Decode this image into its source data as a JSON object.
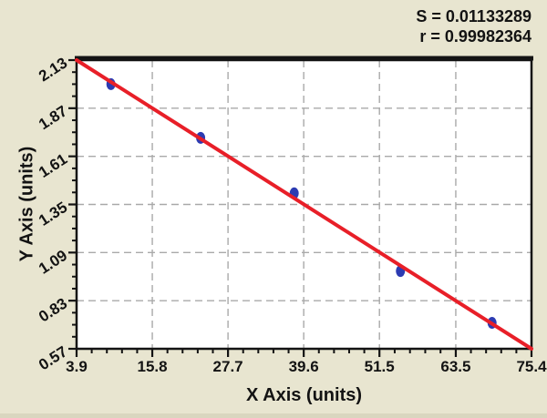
{
  "chart_data": {
    "type": "scatter",
    "title": "",
    "xlabel": "X Axis (units)",
    "ylabel": "Y Axis (units)",
    "xlim": [
      3.9,
      75.4
    ],
    "ylim": [
      0.57,
      2.13
    ],
    "x_tick_labels": [
      "3.9",
      "15.8",
      "27.7",
      "39.6",
      "51.5",
      "63.5",
      "75.4"
    ],
    "y_tick_labels": [
      "0.57",
      "0.83",
      "1.09",
      "1.35",
      "1.61",
      "1.87",
      "2.13"
    ],
    "x_minor_divisions": 5,
    "y_minor_divisions": 4,
    "grid": true,
    "legend": "none",
    "points": [
      {
        "x": 9.3,
        "y": 2.0
      },
      {
        "x": 23.4,
        "y": 1.71
      },
      {
        "x": 38.1,
        "y": 1.41
      },
      {
        "x": 54.8,
        "y": 0.99
      },
      {
        "x": 69.2,
        "y": 0.71
      }
    ],
    "fit_line": {
      "x1": 3.9,
      "y1": 2.13,
      "x2": 75.4,
      "y2": 0.57
    },
    "annotations": [
      "S = 0.01133289",
      "r = 0.99982364"
    ],
    "colors": {
      "background": "#e8e5d0",
      "plot_background": "#ffffff",
      "line": "#e81f28",
      "point": "#2c3bb2",
      "grid": "#a9a9a9",
      "axis": "#131313",
      "text": "#131313"
    }
  }
}
